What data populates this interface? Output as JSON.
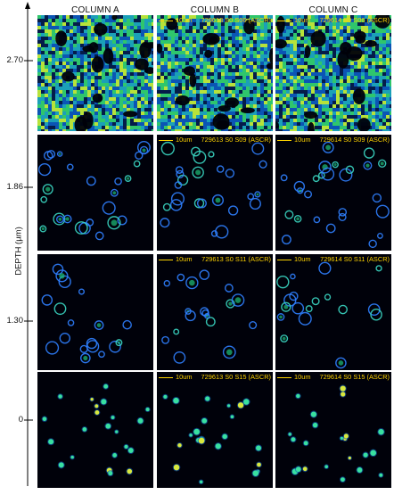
{
  "columns": [
    "COLUMN A",
    "COLUMN B",
    "COLUMN C"
  ],
  "y_axis": {
    "label": "DEPTH (µm)",
    "ticks": [
      "2.70",
      "1.86",
      "1.30",
      "0"
    ]
  },
  "scale_bar": "10um",
  "rows": [
    {
      "panels": [
        {
          "column": "COLUMN A",
          "caption": ""
        },
        {
          "column": "COLUMN B",
          "caption": "729613 S0   S06 (ASCR)"
        },
        {
          "column": "COLUMN C",
          "caption": "729614 S0   S06 (ASCR)"
        }
      ]
    },
    {
      "panels": [
        {
          "column": "COLUMN A",
          "caption": ""
        },
        {
          "column": "COLUMN B",
          "caption": "729613 S0   S09 (ASCR)"
        },
        {
          "column": "COLUMN C",
          "caption": "729614 S0   S09 (ASCR)"
        }
      ]
    },
    {
      "panels": [
        {
          "column": "COLUMN A",
          "caption": ""
        },
        {
          "column": "COLUMN B",
          "caption": "729613 S0   S11 (ASCR)"
        },
        {
          "column": "COLUMN C",
          "caption": "729614 S0   S11 (ASCR)"
        }
      ]
    },
    {
      "panels": [
        {
          "column": "COLUMN A",
          "caption": ""
        },
        {
          "column": "COLUMN B",
          "caption": "729613 S0   S15 (ASCR)"
        },
        {
          "column": "COLUMN C",
          "caption": "729614 S0   S15 (ASCR)"
        }
      ]
    }
  ],
  "colors": {
    "background": "#00010a",
    "dense_fill": "#1ec27a",
    "ring": "#2f7fff",
    "dot": "#39e0a0",
    "scale_bar": "#ffd400",
    "axis": "#000000"
  }
}
